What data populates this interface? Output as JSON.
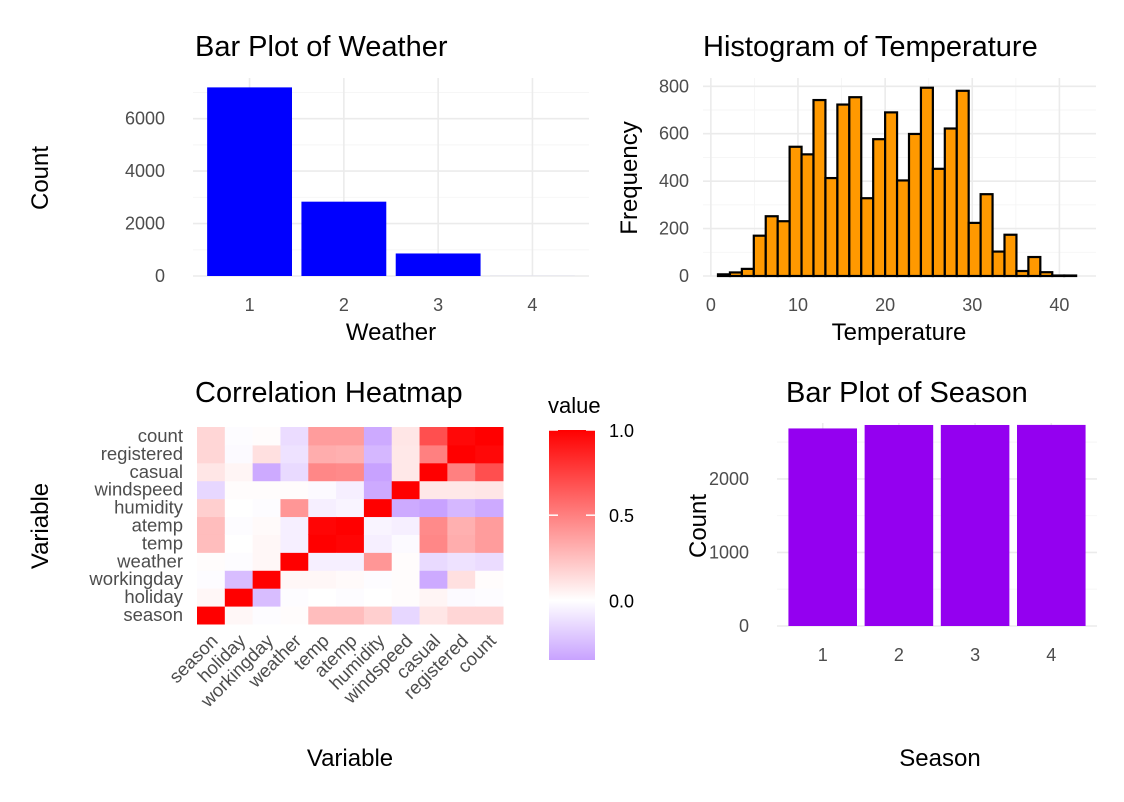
{
  "chart_data": [
    {
      "type": "bar",
      "title": "Bar Plot of Weather",
      "xlabel": "Weather",
      "ylabel": "Count",
      "categories": [
        "1",
        "2",
        "3",
        "4"
      ],
      "values": [
        7192,
        2834,
        859,
        1
      ],
      "yticks": [
        "0",
        "2000",
        "4000",
        "6000"
      ],
      "ylim": [
        0,
        7550
      ],
      "bar_color": "#0000ff",
      "grid": true
    },
    {
      "type": "bar",
      "subtype": "histogram",
      "title": "Histogram of Temperature",
      "xlabel": "Temperature",
      "ylabel": "Frequency",
      "bin_width": 1.37,
      "x_start": 0.82,
      "counts": [
        7,
        15,
        30,
        170,
        252,
        231,
        545,
        513,
        742,
        413,
        723,
        754,
        328,
        577,
        690,
        403,
        599,
        794,
        452,
        622,
        781,
        224,
        345,
        103,
        174,
        21,
        80,
        16,
        2,
        2
      ],
      "xticks": [
        "0",
        "10",
        "20",
        "30",
        "40"
      ],
      "yticks": [
        "0",
        "200",
        "400",
        "600",
        "800"
      ],
      "xlim": [
        -0.9,
        44.2
      ],
      "ylim": [
        0,
        835
      ],
      "fill_color": "#ff9900",
      "edge_color": "#000000",
      "grid": true
    },
    {
      "type": "heatmap",
      "title": "Correlation Heatmap",
      "xlabel": "Variable",
      "ylabel": "Variable",
      "variables": [
        "season",
        "holiday",
        "workingday",
        "weather",
        "temp",
        "atemp",
        "humidity",
        "windspeed",
        "casual",
        "registered",
        "count"
      ],
      "matrix": [
        [
          1.0,
          0.03,
          -0.01,
          0.01,
          0.26,
          0.26,
          0.19,
          -0.15,
          0.1,
          0.16,
          0.16
        ],
        [
          0.03,
          1.0,
          -0.25,
          -0.01,
          0.0,
          -0.01,
          0.0,
          0.01,
          0.04,
          -0.02,
          -0.01
        ],
        [
          -0.01,
          -0.25,
          1.0,
          0.03,
          0.03,
          0.02,
          -0.01,
          0.01,
          -0.32,
          0.12,
          0.01
        ],
        [
          0.01,
          -0.01,
          0.03,
          1.0,
          -0.06,
          -0.06,
          0.41,
          0.01,
          -0.14,
          -0.11,
          -0.13
        ],
        [
          0.26,
          0.0,
          0.03,
          -0.06,
          1.0,
          0.98,
          -0.06,
          -0.02,
          0.47,
          0.32,
          0.39
        ],
        [
          0.26,
          -0.01,
          0.02,
          -0.06,
          0.98,
          1.0,
          -0.04,
          -0.06,
          0.46,
          0.31,
          0.39
        ],
        [
          0.19,
          0.0,
          -0.01,
          0.41,
          -0.06,
          -0.04,
          1.0,
          -0.32,
          -0.35,
          -0.27,
          -0.32
        ],
        [
          -0.15,
          0.01,
          0.01,
          0.01,
          -0.02,
          -0.06,
          -0.32,
          1.0,
          0.09,
          0.09,
          0.1
        ],
        [
          0.1,
          0.04,
          -0.32,
          -0.14,
          0.47,
          0.46,
          -0.35,
          0.09,
          1.0,
          0.5,
          0.69
        ],
        [
          0.16,
          -0.02,
          0.12,
          -0.11,
          0.32,
          0.31,
          -0.27,
          0.09,
          0.5,
          1.0,
          0.97
        ],
        [
          0.16,
          -0.01,
          0.01,
          -0.13,
          0.39,
          0.39,
          -0.32,
          0.1,
          0.69,
          0.97,
          1.0
        ]
      ],
      "legend_title": "value",
      "legend_ticks": [
        "1.0",
        "0.5",
        "0.0"
      ],
      "legend_values": [
        1.0,
        0.5,
        0.0
      ],
      "color_low": "#c8a2ff",
      "color_mid": "#ffffff",
      "color_high": "#ff0000",
      "value_range": [
        -0.35,
        1.0
      ]
    },
    {
      "type": "bar",
      "title": "Bar Plot of Season",
      "xlabel": "Season",
      "ylabel": "Count",
      "categories": [
        "1",
        "2",
        "3",
        "4"
      ],
      "values": [
        2686,
        2733,
        2733,
        2734
      ],
      "yticks": [
        "0",
        "1000",
        "2000"
      ],
      "ylim": [
        0,
        2760
      ],
      "bar_color": "#9400f0",
      "grid": true
    }
  ]
}
